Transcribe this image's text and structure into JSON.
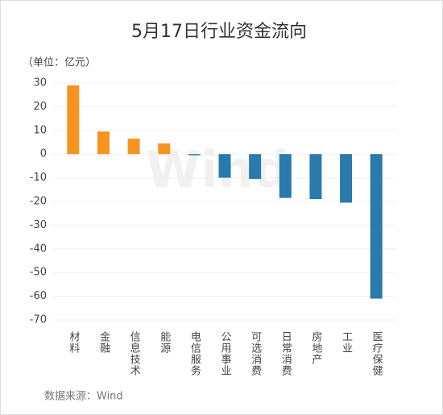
{
  "chart_data": {
    "type": "bar",
    "title": "5月17日行业资金流向",
    "unit_label": "（单位：亿元）",
    "source": "数据来源：Wind",
    "watermark": "Wind",
    "categories": [
      "材料",
      "金融",
      "信息技术",
      "能源",
      "电信服务",
      "公用事业",
      "可选消费",
      "日常消费",
      "房地产",
      "工业",
      "医疗保健"
    ],
    "values": [
      29,
      9.5,
      6.5,
      4.5,
      -0.5,
      -10,
      -10.5,
      -18.5,
      -19,
      -20.5,
      -61
    ],
    "positive_color": "#f7931e",
    "negative_color": "#2a7aac",
    "ylim": [
      -70,
      30
    ],
    "yticks": [
      -70,
      -60,
      -50,
      -40,
      -30,
      -20,
      -10,
      0,
      10,
      20,
      30
    ],
    "grid": true
  }
}
